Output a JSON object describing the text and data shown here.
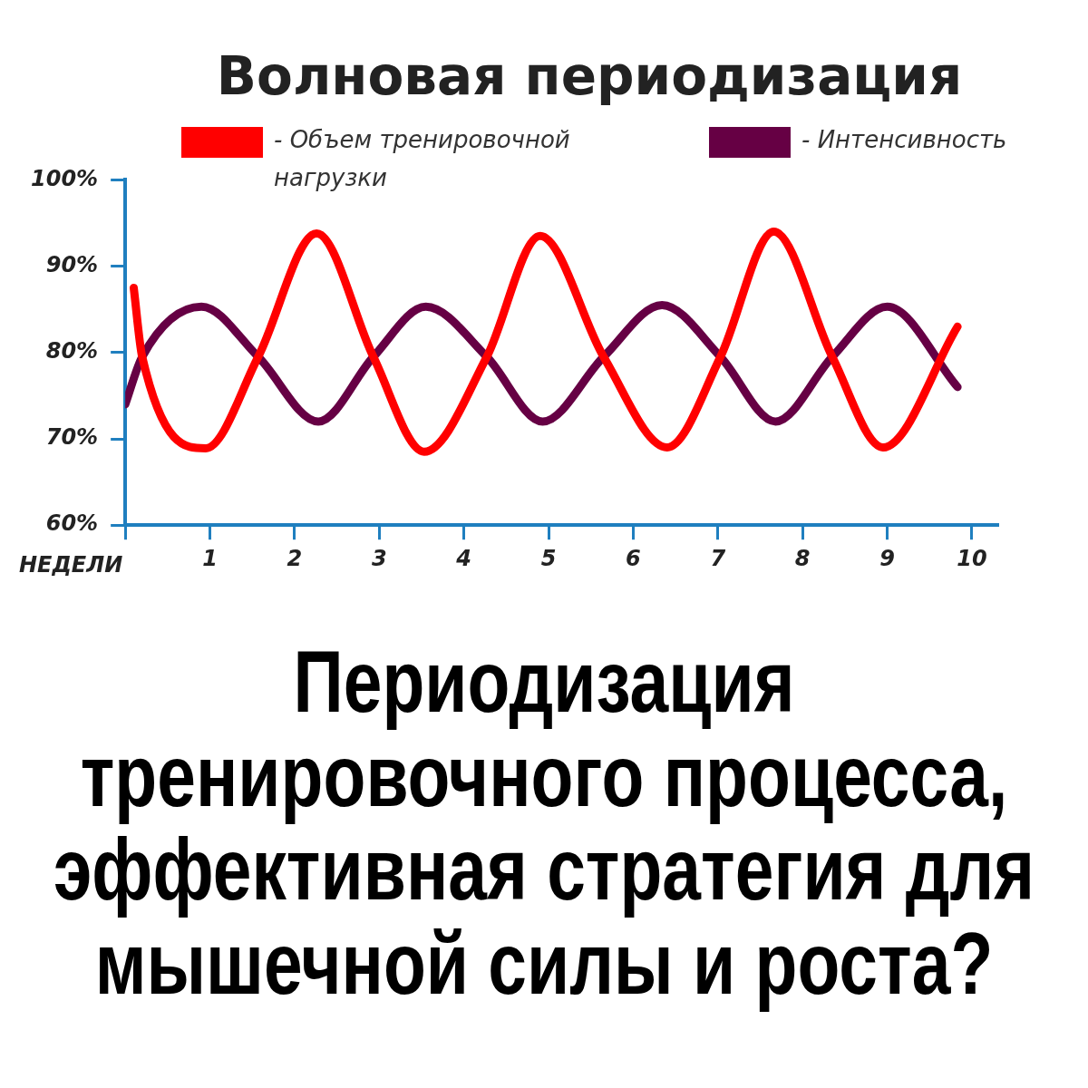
{
  "chart_data": {
    "type": "line",
    "title": "Волновая периодизация",
    "xlabel": "НЕДЕЛИ",
    "annotations": [
      "Периодизация тренировочного процесса, эффективная стратегия для мышечной силы и роста?"
    ],
    "series": [
      {
        "name": "- Объем тренировочной нагрузки",
        "color": "#ff0000",
        "x": [
          0.1,
          0.2,
          0.95,
          1.57,
          2.26,
          2.93,
          3.53,
          4.27,
          4.9,
          5.65,
          6.4,
          7.03,
          7.66,
          8.35,
          8.95,
          9.83
        ],
        "values": [
          87.5,
          79.5,
          68.9,
          79.5,
          93.8,
          79.5,
          68.5,
          79.5,
          93.5,
          79.5,
          69,
          79.5,
          94,
          79.5,
          69,
          83
        ]
      },
      {
        "name": "- Интенсивность",
        "color": "#660044",
        "x": [
          0,
          0.2,
          0.9,
          1.57,
          2.28,
          2.93,
          3.55,
          4.27,
          4.93,
          5.65,
          6.34,
          7.03,
          7.68,
          8.35,
          9.0,
          9.83
        ],
        "values": [
          74,
          79.5,
          85.3,
          79.5,
          72,
          79.5,
          85.3,
          79.5,
          72,
          79.5,
          85.5,
          79.5,
          72,
          79.5,
          85.3,
          76
        ]
      }
    ],
    "xlim": [
      0,
      10.3
    ],
    "xticks": [
      {
        "value": 0,
        "label": null
      },
      1,
      2,
      3,
      4,
      5,
      6,
      7,
      8,
      9,
      10
    ],
    "ylim": [
      60,
      100
    ],
    "yticks": [
      {
        "value": 60,
        "label": "60%"
      },
      {
        "value": 70,
        "label": "70%"
      },
      {
        "value": 80,
        "label": "80%"
      },
      {
        "value": 90,
        "label": "90%"
      },
      {
        "value": 100,
        "label": "100%"
      }
    ],
    "grid": false,
    "legend": "top",
    "marker": "none",
    "line_style": "solid"
  }
}
